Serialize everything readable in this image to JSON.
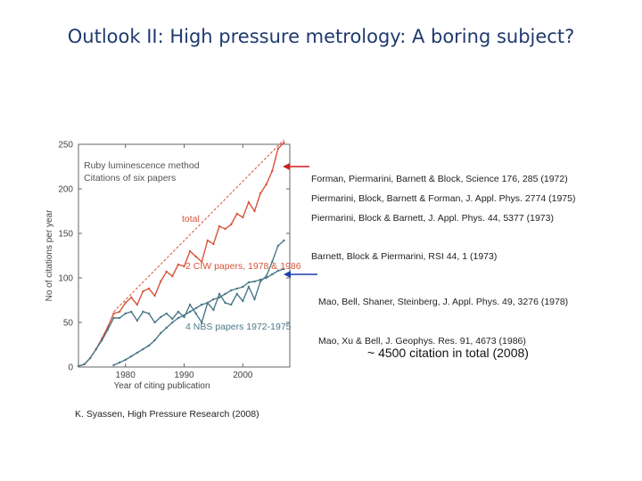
{
  "title": "Outlook II: High pressure metrology:  A boring subject?",
  "references": {
    "red_group_1": [
      "Forman, Piermarini, Barnett & Block, Science 176, 285 (1972)",
      "Piermarini, Block & Barnett, J. Appl. Phys. 44, 5377 (1973)",
      "Barnett, Block & Piermarini, RSI 44, 1 (1973)"
    ],
    "red_group_2": "Piermarini, Block, Barnett & Forman, J. Appl. Phys. 2774 (1975)",
    "blue_group": [
      "Mao, Bell, Shaner, Steinberg, J. Appl. Phys. 49, 3276 (1978)",
      "Mao, Xu & Bell, J. Geophys. Res. 91, 4673 (1986)"
    ]
  },
  "total_note": "~ 4500 citation in total (2008)",
  "credit": "K. Syassen, High Pressure Research (2008)",
  "colors": {
    "total": "#d9533a",
    "ciw": "#4a7888",
    "arrow_red": "#cc1f1f",
    "arrow_blue": "#1f3ea8",
    "title": "#1f3a6e"
  },
  "chart_data": {
    "type": "line",
    "title": "",
    "legend_text": [
      "Ruby luminescence method",
      "Citations of six papers"
    ],
    "xlabel": "Year of citing publication",
    "ylabel": "No of citations per year",
    "xlim": [
      1972,
      2008
    ],
    "ylim": [
      0,
      250
    ],
    "xticks": [
      1980,
      1990,
      2000
    ],
    "yticks": [
      0,
      50,
      100,
      150,
      200,
      250
    ],
    "x": [
      1972,
      1973,
      1974,
      1975,
      1976,
      1977,
      1978,
      1979,
      1980,
      1981,
      1982,
      1983,
      1984,
      1985,
      1986,
      1987,
      1988,
      1989,
      1990,
      1991,
      1992,
      1993,
      1994,
      1995,
      1996,
      1997,
      1998,
      1999,
      2000,
      2001,
      2002,
      2003,
      2004,
      2005,
      2006,
      2007
    ],
    "series": [
      {
        "name": "total",
        "values": [
          1,
          3,
          10,
          20,
          32,
          45,
          60,
          62,
          72,
          78,
          70,
          85,
          88,
          80,
          96,
          107,
          102,
          115,
          113,
          130,
          124,
          118,
          142,
          138,
          158,
          155,
          160,
          172,
          168,
          185,
          175,
          195,
          205,
          220,
          245,
          252
        ]
      },
      {
        "name": "2 CIW papers, 1978 & 1986",
        "values": [
          null,
          null,
          null,
          null,
          null,
          null,
          2,
          5,
          8,
          12,
          16,
          20,
          24,
          30,
          38,
          44,
          50,
          55,
          58,
          62,
          66,
          70,
          72,
          76,
          78,
          82,
          86,
          88,
          90,
          95,
          96,
          98,
          100,
          104,
          108,
          110
        ]
      },
      {
        "name": "4 NBS papers 1972-1975",
        "values": [
          1,
          3,
          10,
          20,
          30,
          42,
          55,
          55,
          60,
          62,
          52,
          62,
          60,
          50,
          56,
          60,
          54,
          62,
          56,
          70,
          60,
          50,
          72,
          64,
          82,
          72,
          70,
          82,
          74,
          90,
          76,
          96,
          102,
          118,
          136,
          142
        ]
      }
    ],
    "fit_line": {
      "name": "total trend",
      "x": [
        1978,
        2007
      ],
      "y": [
        62,
        255
      ]
    },
    "series_labels": [
      "total",
      "2 CIW papers, 1978 & 1986",
      "4 NBS papers 1972-1975"
    ]
  }
}
